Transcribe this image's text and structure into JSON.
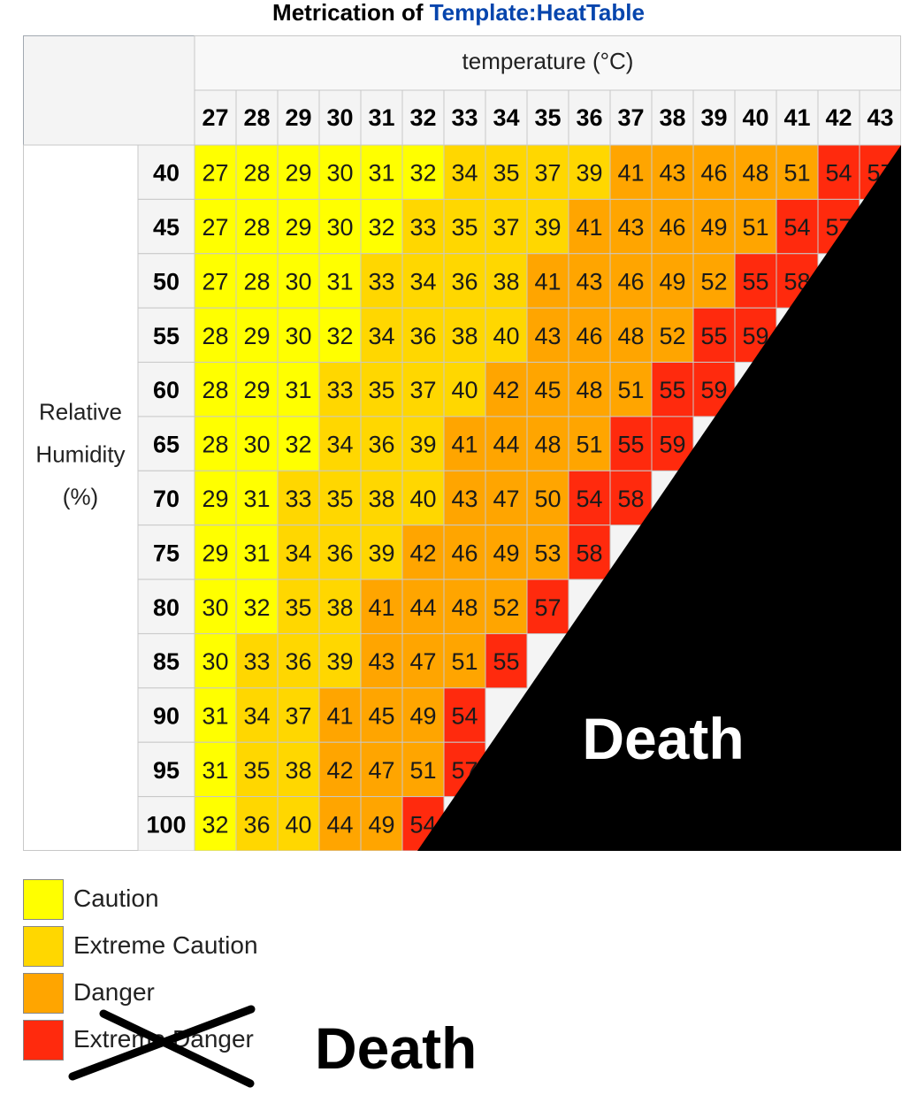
{
  "title": {
    "prefix": "Metrication of ",
    "link": "Template:HeatTable"
  },
  "chart_data": {
    "type": "heatmap",
    "title": "Metrication of Template:HeatTable",
    "xlabel": "temperature (°C)",
    "ylabel": "Relative Humidity (%)",
    "ylabel_lines": [
      "Relative",
      "Humidity",
      "(%)"
    ],
    "x": [
      27,
      28,
      29,
      30,
      31,
      32,
      33,
      34,
      35,
      36,
      37,
      38,
      39,
      40,
      41,
      42,
      43
    ],
    "y": [
      40,
      45,
      50,
      55,
      60,
      65,
      70,
      75,
      80,
      85,
      90,
      95,
      100
    ],
    "values": [
      [
        27,
        28,
        29,
        30,
        31,
        32,
        34,
        35,
        37,
        39,
        41,
        43,
        46,
        48,
        51,
        54,
        57
      ],
      [
        27,
        28,
        29,
        30,
        32,
        33,
        35,
        37,
        39,
        41,
        43,
        46,
        49,
        51,
        54,
        57,
        null
      ],
      [
        27,
        28,
        30,
        31,
        33,
        34,
        36,
        38,
        41,
        43,
        46,
        49,
        52,
        55,
        58,
        null,
        null
      ],
      [
        28,
        29,
        30,
        32,
        34,
        36,
        38,
        40,
        43,
        46,
        48,
        52,
        55,
        59,
        null,
        null,
        null
      ],
      [
        28,
        29,
        31,
        33,
        35,
        37,
        40,
        42,
        45,
        48,
        51,
        55,
        59,
        null,
        null,
        null,
        null
      ],
      [
        28,
        30,
        32,
        34,
        36,
        39,
        41,
        44,
        48,
        51,
        55,
        59,
        null,
        null,
        null,
        null,
        null
      ],
      [
        29,
        31,
        33,
        35,
        38,
        40,
        43,
        47,
        50,
        54,
        58,
        null,
        null,
        null,
        null,
        null,
        null
      ],
      [
        29,
        31,
        34,
        36,
        39,
        42,
        46,
        49,
        53,
        58,
        null,
        null,
        null,
        null,
        null,
        null,
        null
      ],
      [
        30,
        32,
        35,
        38,
        41,
        44,
        48,
        52,
        57,
        null,
        null,
        null,
        null,
        null,
        null,
        null,
        null
      ],
      [
        30,
        33,
        36,
        39,
        43,
        47,
        51,
        55,
        null,
        null,
        null,
        null,
        null,
        null,
        null,
        null,
        null
      ],
      [
        31,
        34,
        37,
        41,
        45,
        49,
        54,
        null,
        null,
        null,
        null,
        null,
        null,
        null,
        null,
        null,
        null
      ],
      [
        31,
        35,
        38,
        42,
        47,
        51,
        57,
        null,
        null,
        null,
        null,
        null,
        null,
        null,
        null,
        null,
        null
      ],
      [
        32,
        36,
        40,
        44,
        49,
        54,
        null,
        null,
        null,
        null,
        null,
        null,
        null,
        null,
        null,
        null,
        null
      ]
    ],
    "overlay_label": "Death",
    "legend": [
      {
        "label": "Caution",
        "color": "#ffff00"
      },
      {
        "label": "Extreme Caution",
        "color": "#ffd700"
      },
      {
        "label": "Danger",
        "color": "#ffa500"
      },
      {
        "label": "Extreme Danger",
        "color": "#ff2a0d",
        "struck_out": true
      }
    ],
    "legend_replacement": "Death"
  }
}
